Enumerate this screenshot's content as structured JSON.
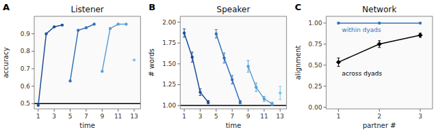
{
  "chart_data": [
    {
      "type": "line",
      "title": "Listener",
      "x_label": "time",
      "y_label": "accuracy",
      "annotations": [
        {
          "text": "A"
        }
      ],
      "xlim": [
        0.5,
        13.8
      ],
      "xticks": [
        1,
        3,
        5,
        7,
        9,
        11,
        13
      ],
      "ylim": [
        0.47,
        1.0
      ],
      "yticks": [
        0.5,
        0.6,
        0.7,
        0.8,
        0.9
      ],
      "reference_line": 0.5,
      "grid": false,
      "marker": "circle",
      "series": [
        {
          "color": "#1c4f96",
          "x": [
            1,
            2,
            3,
            4
          ],
          "values": [
            0.49,
            0.9,
            0.94,
            0.95
          ]
        },
        {
          "color": "#3572b8",
          "x": [
            5,
            6,
            7,
            8
          ],
          "values": [
            0.63,
            0.92,
            0.935,
            0.955
          ]
        },
        {
          "color": "#5a9fd4",
          "x": [
            9,
            10,
            11,
            12
          ],
          "values": [
            0.685,
            0.93,
            0.955,
            0.955
          ]
        },
        {
          "color": "#7ec8e8",
          "x": [
            13
          ],
          "values": [
            0.75
          ]
        }
      ]
    },
    {
      "type": "line",
      "title": "Speaker",
      "x_label": "time",
      "y_label": "# words",
      "annotations": [
        {
          "text": "B"
        }
      ],
      "xlim": [
        0.5,
        13.8
      ],
      "xticks": [
        1,
        3,
        5,
        7,
        9,
        11,
        13
      ],
      "ylim": [
        0.96,
        2.07
      ],
      "yticks": [
        {
          "value": 1,
          "label": "1.00"
        },
        1.25,
        {
          "value": 1.5,
          "label": "1.50"
        },
        1.75,
        {
          "value": 2,
          "label": "2.00"
        }
      ],
      "reference_line": 1.0,
      "grid": false,
      "marker": "circle",
      "series": [
        {
          "color": "#1c4f96",
          "x": [
            1,
            2,
            3,
            4
          ],
          "values": [
            1.87,
            1.58,
            1.16,
            1.04
          ],
          "errors": [
            0.05,
            0.06,
            0.04,
            0.02
          ]
        },
        {
          "color": "#3572b8",
          "x": [
            5,
            6,
            7,
            8
          ],
          "values": [
            1.86,
            1.57,
            1.31,
            1.04
          ],
          "errors": [
            0.05,
            0.06,
            0.05,
            0.02
          ]
        },
        {
          "color": "#5a9fd4",
          "x": [
            9,
            10,
            11,
            12
          ],
          "values": [
            1.47,
            1.22,
            1.08,
            1.02
          ],
          "errors": [
            0.07,
            0.05,
            0.03,
            0.02
          ]
        },
        {
          "color": "#7ec8e8",
          "x": [
            13
          ],
          "values": [
            1.15
          ],
          "errors": [
            0.08
          ]
        }
      ]
    },
    {
      "type": "line",
      "title": "Network",
      "x_label": "partner #",
      "y_label": "alignment",
      "annotations": [
        {
          "text": "C"
        }
      ],
      "xlim": [
        0.7,
        3.3
      ],
      "xticks": [
        1,
        2,
        3
      ],
      "ylim": [
        -0.02,
        1.08
      ],
      "yticks": [
        {
          "value": 0,
          "label": "0.00"
        },
        0.25,
        {
          "value": 0.5,
          "label": "0.50"
        },
        0.75,
        {
          "value": 1,
          "label": "1.00"
        }
      ],
      "grid": false,
      "series": [
        {
          "name": "within dyads",
          "color": "#3572b8",
          "marker": "circle",
          "x": [
            1,
            2,
            3
          ],
          "values": [
            1.0,
            1.0,
            1.0
          ]
        },
        {
          "name": "across dyads",
          "color": "black",
          "marker": "diamond",
          "x": [
            1,
            2,
            3
          ],
          "values": [
            0.535,
            0.75,
            0.855
          ],
          "errors": [
            0.05,
            0.04,
            0.025
          ]
        }
      ]
    }
  ]
}
